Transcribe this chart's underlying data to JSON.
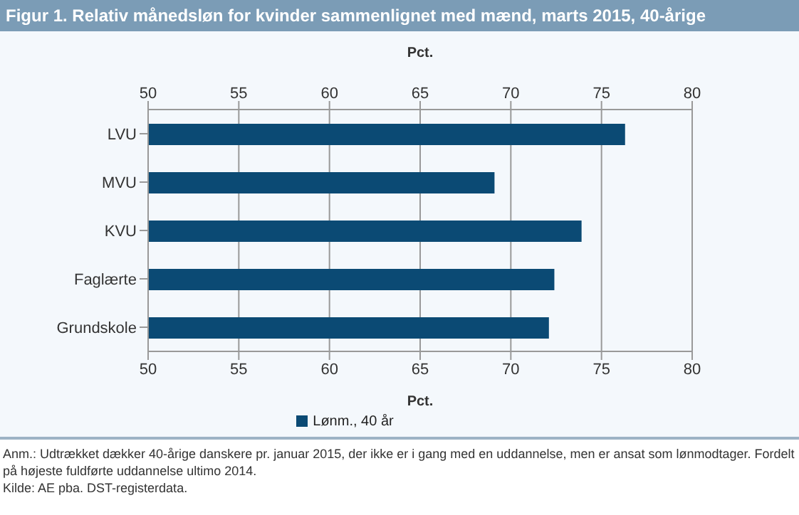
{
  "chart_data": {
    "type": "bar",
    "orientation": "horizontal",
    "title": "Figur 1. Relativ månedsløn for kvinder sammenlignet med mænd, marts 2015, 40-årige",
    "categories": [
      "LVU",
      "MVU",
      "KVU",
      "Faglærte",
      "Grundskole"
    ],
    "series": [
      {
        "name": "Lønm., 40 år",
        "color": "#0b4a74",
        "values": [
          76.3,
          69.1,
          73.9,
          72.4,
          72.1
        ]
      }
    ],
    "xlim": [
      50,
      80
    ],
    "xticks": [
      50,
      55,
      60,
      65,
      70,
      75,
      80
    ],
    "xlabel": "Pct.",
    "x2lim": [
      50,
      80
    ],
    "x2ticks": [
      50,
      55,
      60,
      65,
      70,
      75,
      80
    ],
    "x2label": "Pct.",
    "grid": "x",
    "legend": "bottom",
    "annotations": [
      "Anm.: Udtrækket dækker 40-årige danskere pr. januar 2015, der ikke er i gang med en uddannelse, men er ansat som lønmodtager. Fordelt på højeste fuldførte uddannelse ultimo 2014.",
      "Kilde: AE pba. DST-registerdata."
    ]
  }
}
